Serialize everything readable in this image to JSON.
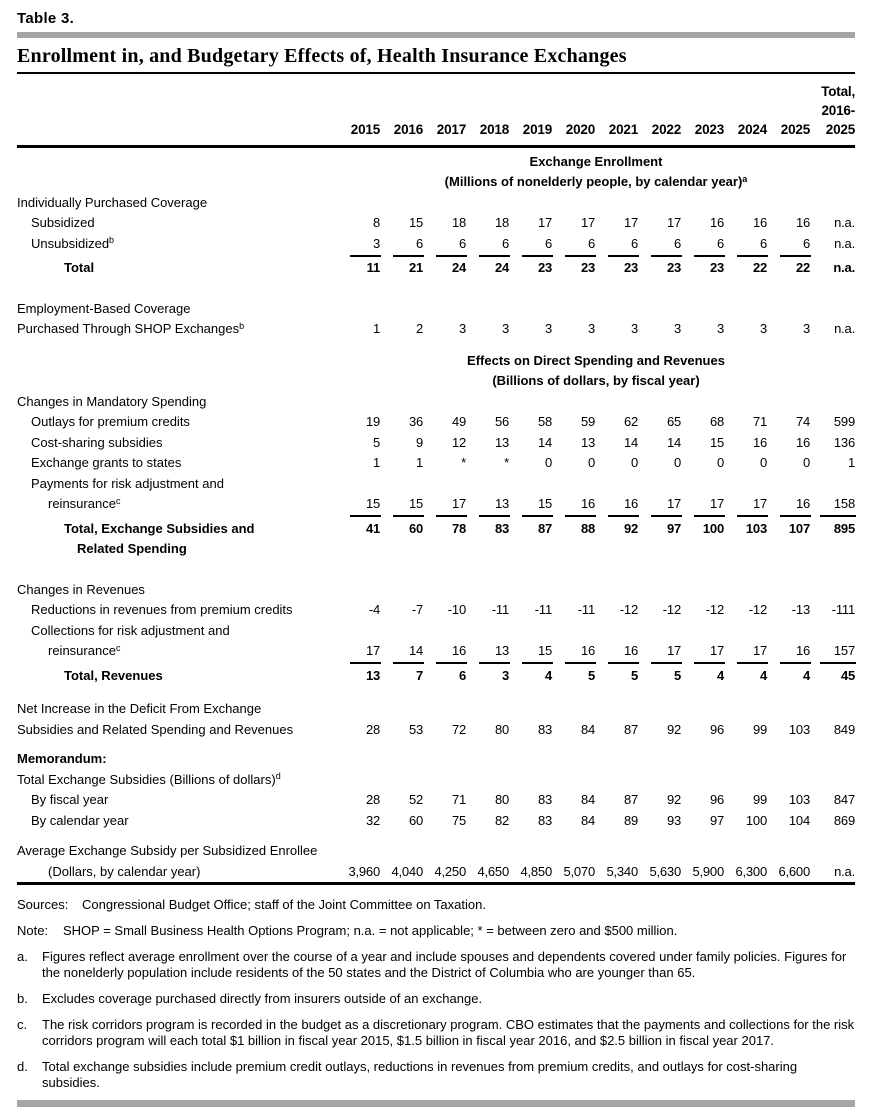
{
  "header": {
    "table_label": "Table 3.",
    "title": "Enrollment in, and Budgetary Effects of, Health Insurance Exchanges"
  },
  "colors": {
    "text": "#000000",
    "divider_gray": "#a5a5a5",
    "rule_black": "#000000"
  },
  "columns": {
    "years": [
      "2015",
      "2016",
      "2017",
      "2018",
      "2019",
      "2020",
      "2021",
      "2022",
      "2023",
      "2024",
      "2025"
    ],
    "total_lines": [
      "Total,",
      "2016-",
      "2025"
    ]
  },
  "table": {
    "rows": [
      {
        "kind": "center",
        "gap": 0,
        "lines": [
          {
            "text": "Exchange Enrollment"
          },
          {
            "text": "(Millions of nonelderly people, by calendar year)",
            "sup": "a"
          }
        ]
      },
      {
        "kind": "row",
        "lines": [
          {
            "text": "Individually Purchased Coverage",
            "indent": 0
          }
        ]
      },
      {
        "kind": "row",
        "lines": [
          {
            "text": "Subsidized",
            "indent": 1
          }
        ],
        "values": [
          "8",
          "15",
          "18",
          "18",
          "17",
          "17",
          "17",
          "17",
          "16",
          "16",
          "16",
          "n.a."
        ]
      },
      {
        "kind": "row",
        "lines": [
          {
            "text": "Unsubsidized",
            "sup": "b",
            "indent": 1
          }
        ],
        "values": [
          "3",
          "6",
          "6",
          "6",
          "6",
          "6",
          "6",
          "6",
          "6",
          "6",
          "6",
          "n.a."
        ],
        "underline": "years"
      },
      {
        "kind": "row",
        "gap": 4,
        "bold": true,
        "lines": [
          {
            "text": "Total",
            "indent": 3
          }
        ],
        "values": [
          "11",
          "21",
          "24",
          "24",
          "23",
          "23",
          "23",
          "23",
          "23",
          "22",
          "22",
          "n.a."
        ]
      },
      {
        "kind": "row",
        "gap": 20,
        "lines": [
          {
            "text": "Employment-Based Coverage",
            "indent": 0
          },
          {
            "text": "Purchased Through SHOP Exchanges",
            "sup": "b",
            "indent": 0
          }
        ],
        "values": [
          "1",
          "2",
          "3",
          "3",
          "3",
          "3",
          "3",
          "3",
          "3",
          "3",
          "3",
          "n.a."
        ]
      },
      {
        "kind": "center",
        "gap": 11,
        "lines": [
          {
            "text": "Effects on Direct Spending and Revenues"
          },
          {
            "text": "(Billions of dollars, by fiscal year)"
          }
        ]
      },
      {
        "kind": "row",
        "lines": [
          {
            "text": "Changes in Mandatory Spending",
            "indent": 0
          }
        ]
      },
      {
        "kind": "row",
        "lines": [
          {
            "text": "Outlays for premium credits",
            "indent": 1
          }
        ],
        "values": [
          "19",
          "36",
          "49",
          "56",
          "58",
          "59",
          "62",
          "65",
          "68",
          "71",
          "74",
          "599"
        ]
      },
      {
        "kind": "row",
        "lines": [
          {
            "text": "Cost-sharing subsidies",
            "indent": 1
          }
        ],
        "values": [
          "5",
          "9",
          "12",
          "13",
          "14",
          "13",
          "14",
          "14",
          "15",
          "16",
          "16",
          "136"
        ]
      },
      {
        "kind": "row",
        "lines": [
          {
            "text": "Exchange grants to states",
            "indent": 1
          }
        ],
        "values": [
          "1",
          "1",
          "*",
          "*",
          "0",
          "0",
          "0",
          "0",
          "0",
          "0",
          "0",
          "1"
        ]
      },
      {
        "kind": "row",
        "lines": [
          {
            "text": "Payments for risk adjustment and",
            "indent": 1
          },
          {
            "text": "reinsurance",
            "sup": "c",
            "indent": 2
          }
        ],
        "values": [
          "15",
          "15",
          "17",
          "13",
          "15",
          "16",
          "16",
          "17",
          "17",
          "17",
          "16",
          "158"
        ],
        "underline": "all"
      },
      {
        "kind": "row",
        "gap": 4,
        "bold": true,
        "align": "first",
        "lines": [
          {
            "text": "Total, Exchange Subsidies and",
            "indent": 3
          },
          {
            "text": "Related Spending",
            "indent": 4
          }
        ],
        "values": [
          "41",
          "60",
          "78",
          "83",
          "87",
          "88",
          "92",
          "97",
          "100",
          "103",
          "107",
          "895"
        ]
      },
      {
        "kind": "row",
        "gap": 20,
        "lines": [
          {
            "text": "Changes in Revenues",
            "indent": 0
          }
        ]
      },
      {
        "kind": "row",
        "lines": [
          {
            "text": "Reductions in revenues from premium credits",
            "indent": 1
          }
        ],
        "values": [
          "-4",
          "-7",
          "-10",
          "-11",
          "-11",
          "-11",
          "-12",
          "-12",
          "-12",
          "-12",
          "-13",
          "-111"
        ]
      },
      {
        "kind": "row",
        "lines": [
          {
            "text": "Collections for risk adjustment and",
            "indent": 1
          },
          {
            "text": "reinsurance",
            "sup": "c",
            "indent": 2
          }
        ],
        "values": [
          "17",
          "14",
          "16",
          "13",
          "15",
          "16",
          "16",
          "17",
          "17",
          "17",
          "16",
          "157"
        ],
        "underline": "all"
      },
      {
        "kind": "row",
        "gap": 4,
        "bold": true,
        "lines": [
          {
            "text": "Total, Revenues",
            "indent": 3
          }
        ],
        "values": [
          "13",
          "7",
          "6",
          "3",
          "4",
          "5",
          "5",
          "5",
          "4",
          "4",
          "4",
          "45"
        ]
      },
      {
        "kind": "row",
        "gap": 13,
        "lines": [
          {
            "text": "Net Increase in the Deficit From Exchange",
            "indent": 0
          },
          {
            "text": "Subsidies and Related Spending and Revenues",
            "indent": 0
          }
        ],
        "values": [
          "28",
          "53",
          "72",
          "80",
          "83",
          "84",
          "87",
          "92",
          "96",
          "99",
          "103",
          "849"
        ]
      },
      {
        "kind": "row",
        "gap": 9,
        "bold": true,
        "lines": [
          {
            "text": "Memorandum:",
            "indent": 0
          }
        ]
      },
      {
        "kind": "row",
        "lines": [
          {
            "text": "Total Exchange Subsidies (Billions of dollars)",
            "sup": "d",
            "indent": 0
          }
        ]
      },
      {
        "kind": "row",
        "lines": [
          {
            "text": "By fiscal year",
            "indent": 1
          }
        ],
        "values": [
          "28",
          "52",
          "71",
          "80",
          "83",
          "84",
          "87",
          "92",
          "96",
          "99",
          "103",
          "847"
        ]
      },
      {
        "kind": "row",
        "lines": [
          {
            "text": "By calendar year",
            "indent": 1
          }
        ],
        "values": [
          "32",
          "60",
          "75",
          "82",
          "83",
          "84",
          "89",
          "93",
          "97",
          "100",
          "104",
          "869"
        ]
      },
      {
        "kind": "row",
        "gap": 10,
        "lines": [
          {
            "text": "Average Exchange Subsidy per Subsidized Enrollee",
            "indent": 0
          },
          {
            "text": "(Dollars, by calendar year)",
            "indent": 2
          }
        ],
        "values": [
          "3,960",
          "4,040",
          "4,250",
          "4,650",
          "4,850",
          "5,070",
          "5,340",
          "5,630",
          "5,900",
          "6,300",
          "6,600",
          "n.a."
        ]
      }
    ]
  },
  "footnotes": [
    {
      "type": "sources",
      "label": "Sources:",
      "text": "Congressional Budget Office; staff of the Joint Committee on Taxation."
    },
    {
      "type": "note",
      "label": "Note:",
      "text": "SHOP = Small Business Health Options Program; n.a. = not applicable; * = between zero and $500 million."
    },
    {
      "type": "letter",
      "label": "a.",
      "text": "Figures reflect average enrollment over the course of a year and include spouses and dependents covered under family policies. Figures for the nonelderly population include residents of the 50 states and the District of Columbia who are younger than 65."
    },
    {
      "type": "letter",
      "label": "b.",
      "text": "Excludes coverage purchased directly from insurers outside of an exchange."
    },
    {
      "type": "letter",
      "label": "c.",
      "text": "The risk corridors program is recorded in the budget as a discretionary program. CBO estimates that the payments and collections for the risk corridors program will each total $1 billion in fiscal year 2015, $1.5 billion in fiscal year 2016, and $2.5 billion in fiscal year 2017."
    },
    {
      "type": "letter",
      "label": "d.",
      "text": "Total exchange subsidies include premium credit outlays, reductions in revenues from premium credits, and outlays for cost-sharing subsidies."
    }
  ]
}
